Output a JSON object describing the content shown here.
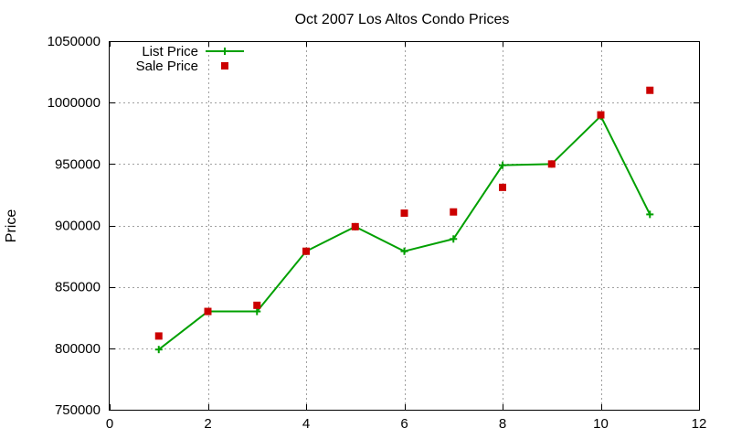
{
  "chart_data": {
    "type": "line",
    "title": "Oct 2007 Los Altos Condo Prices",
    "xlabel": "",
    "ylabel": "Price",
    "xlim": [
      0,
      12
    ],
    "ylim": [
      750000,
      1050000
    ],
    "x_ticks": [
      0,
      2,
      4,
      6,
      8,
      10,
      12
    ],
    "y_ticks": [
      750000,
      800000,
      850000,
      900000,
      950000,
      1000000,
      1050000
    ],
    "grid": true,
    "legend_position": "top-left",
    "series": [
      {
        "name": "List Price",
        "style": "line-with-plus-markers",
        "color": "#00a000",
        "x": [
          1,
          2,
          3,
          4,
          5,
          6,
          7,
          8,
          9,
          10,
          11
        ],
        "values": [
          799000,
          830000,
          830000,
          879000,
          899000,
          879000,
          889000,
          949000,
          950000,
          989000,
          909000
        ]
      },
      {
        "name": "Sale Price",
        "style": "square-points",
        "color": "#cc0000",
        "x": [
          1,
          2,
          3,
          4,
          5,
          6,
          7,
          8,
          9,
          10,
          11
        ],
        "values": [
          810000,
          830000,
          835000,
          879000,
          899000,
          910000,
          911000,
          931000,
          950000,
          990000,
          1010000
        ]
      }
    ]
  }
}
